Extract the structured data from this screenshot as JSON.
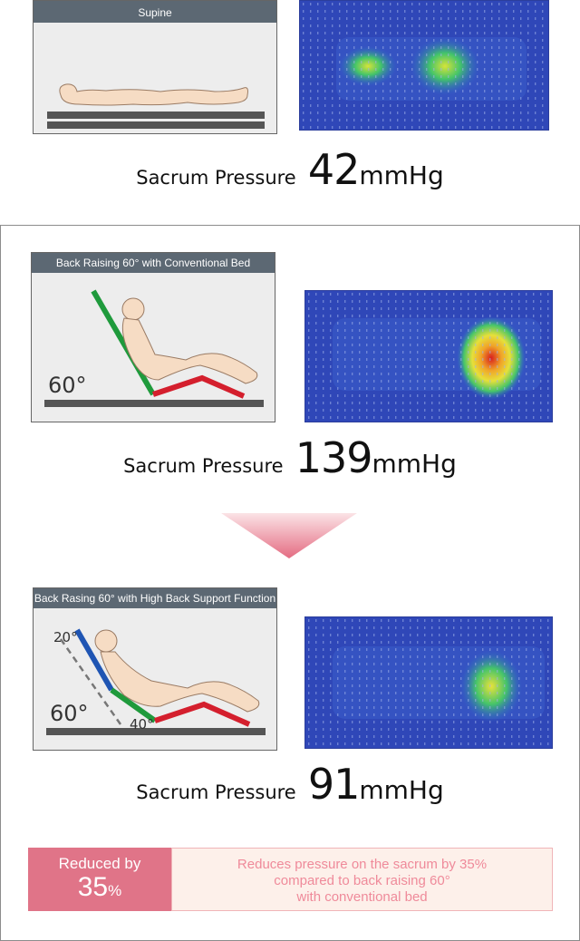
{
  "section_supine": {
    "panel_title": "Supine",
    "pressure_label": "Sacrum Pressure",
    "pressure_value": "42",
    "pressure_unit": "mmHg"
  },
  "section_conventional": {
    "panel_title": "Back Raising 60° with Conventional Bed",
    "angle_label": "60°",
    "pressure_label": "Sacrum Pressure",
    "pressure_value": "139",
    "pressure_unit": "mmHg"
  },
  "section_high_back": {
    "panel_title": "Back Rasing 60° with High Back Support Function",
    "angle_20_label": "20°",
    "angle_60_label": "60°",
    "angle_40_label": "40°",
    "pressure_label": "Sacrum Pressure",
    "pressure_value": "91",
    "pressure_unit": "mmHg"
  },
  "reduction": {
    "label": "Reduced by",
    "percent_value": "35",
    "percent_sign": "%",
    "description_line1": "Reduces pressure on the sacrum by 35%",
    "description_line2": "compared to back raising 60°",
    "description_line3": "with conventional bed"
  },
  "colors": {
    "heatmap_low": "#2f47b8",
    "heatmap_mid": "#3fc26a",
    "heatmap_high": "#d81e1e",
    "arrow_pink": "#e46c82",
    "green_back": "#1f9a3c",
    "red_legs": "#d41f2d",
    "blue_back": "#1f55b3",
    "panel_title_bg": "#5c6873"
  }
}
